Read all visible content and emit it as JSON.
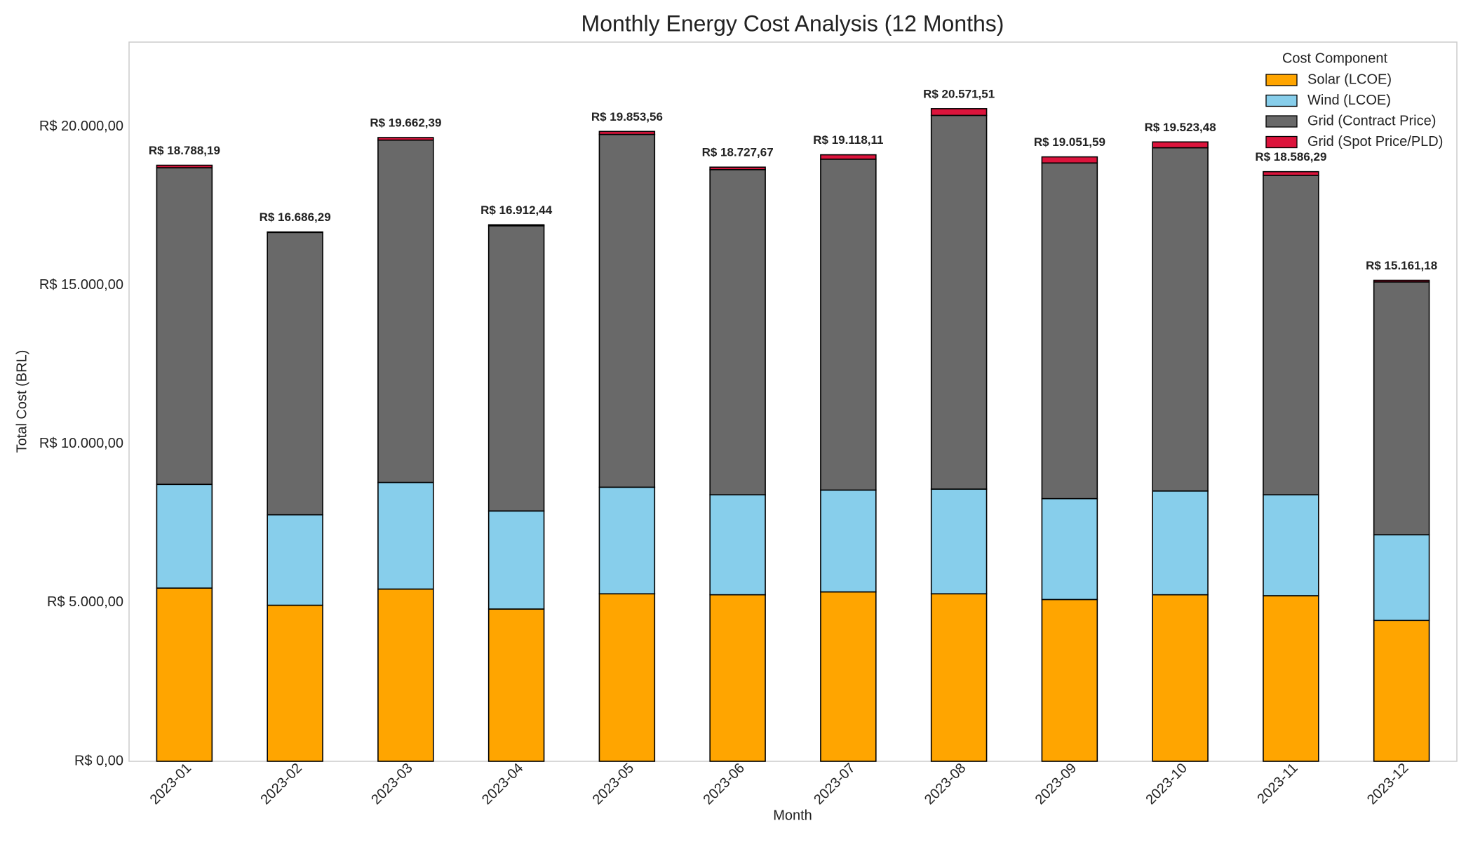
{
  "chart_data": {
    "type": "stacked-bar",
    "title": "Monthly Energy Cost Analysis (12 Months)",
    "x_label": "Month",
    "y_label": "Total Cost (BRL)",
    "categories": [
      "2023-01",
      "2023-02",
      "2023-03",
      "2023-04",
      "2023-05",
      "2023-06",
      "2023-07",
      "2023-08",
      "2023-09",
      "2023-10",
      "2023-11",
      "2023-12"
    ],
    "series": [
      {
        "name": "Solar (LCOE)",
        "color": "#FFA500",
        "values": [
          5460,
          4920,
          5430,
          4800,
          5280,
          5250,
          5340,
          5280,
          5100,
          5250,
          5220,
          4440
        ]
      },
      {
        "name": "Wind (LCOE)",
        "color": "#87CEEB",
        "values": [
          3270,
          2850,
          3360,
          3090,
          3360,
          3150,
          3210,
          3300,
          3180,
          3270,
          3180,
          2700
        ]
      },
      {
        "name": "Grid (Contract Price)",
        "color": "#696969",
        "values": [
          9980,
          8900,
          10790,
          8990,
          11120,
          10250,
          10430,
          11780,
          10580,
          10820,
          10070,
          7970
        ]
      },
      {
        "name": "Grid (Spot Price/PLD)",
        "color": "#DC143C",
        "values": [
          78,
          16,
          82,
          32,
          94,
          78,
          138,
          212,
          192,
          183,
          116,
          51
        ]
      }
    ],
    "totals": {
      "values": [
        18788.19,
        16686.29,
        19662.39,
        16912.44,
        19853.56,
        18727.67,
        19118.11,
        20571.51,
        19051.59,
        19523.48,
        18586.29,
        15161.18
      ],
      "value_labels": [
        "R$ 18.788,19",
        "R$ 16.686,29",
        "R$ 19.662,39",
        "R$ 16.912,44",
        "R$ 19.853,56",
        "R$ 18.727,67",
        "R$ 19.118,11",
        "R$ 20.571,51",
        "R$ 19.051,59",
        "R$ 19.523,48",
        "R$ 18.586,29",
        "R$ 15.161,18"
      ]
    },
    "ylim": [
      0,
      22670
    ],
    "yticks": [
      {
        "value": 0,
        "label": "R$ 0,00"
      },
      {
        "value": 5000,
        "label": "R$ 5.000,00"
      },
      {
        "value": 10000,
        "label": "R$ 10.000,00"
      },
      {
        "value": 15000,
        "label": "R$ 15.000,00"
      },
      {
        "value": 20000,
        "label": "R$ 20.000,00"
      }
    ],
    "grid": false,
    "legend": {
      "title": "Cost Component",
      "position": "upper right"
    }
  }
}
